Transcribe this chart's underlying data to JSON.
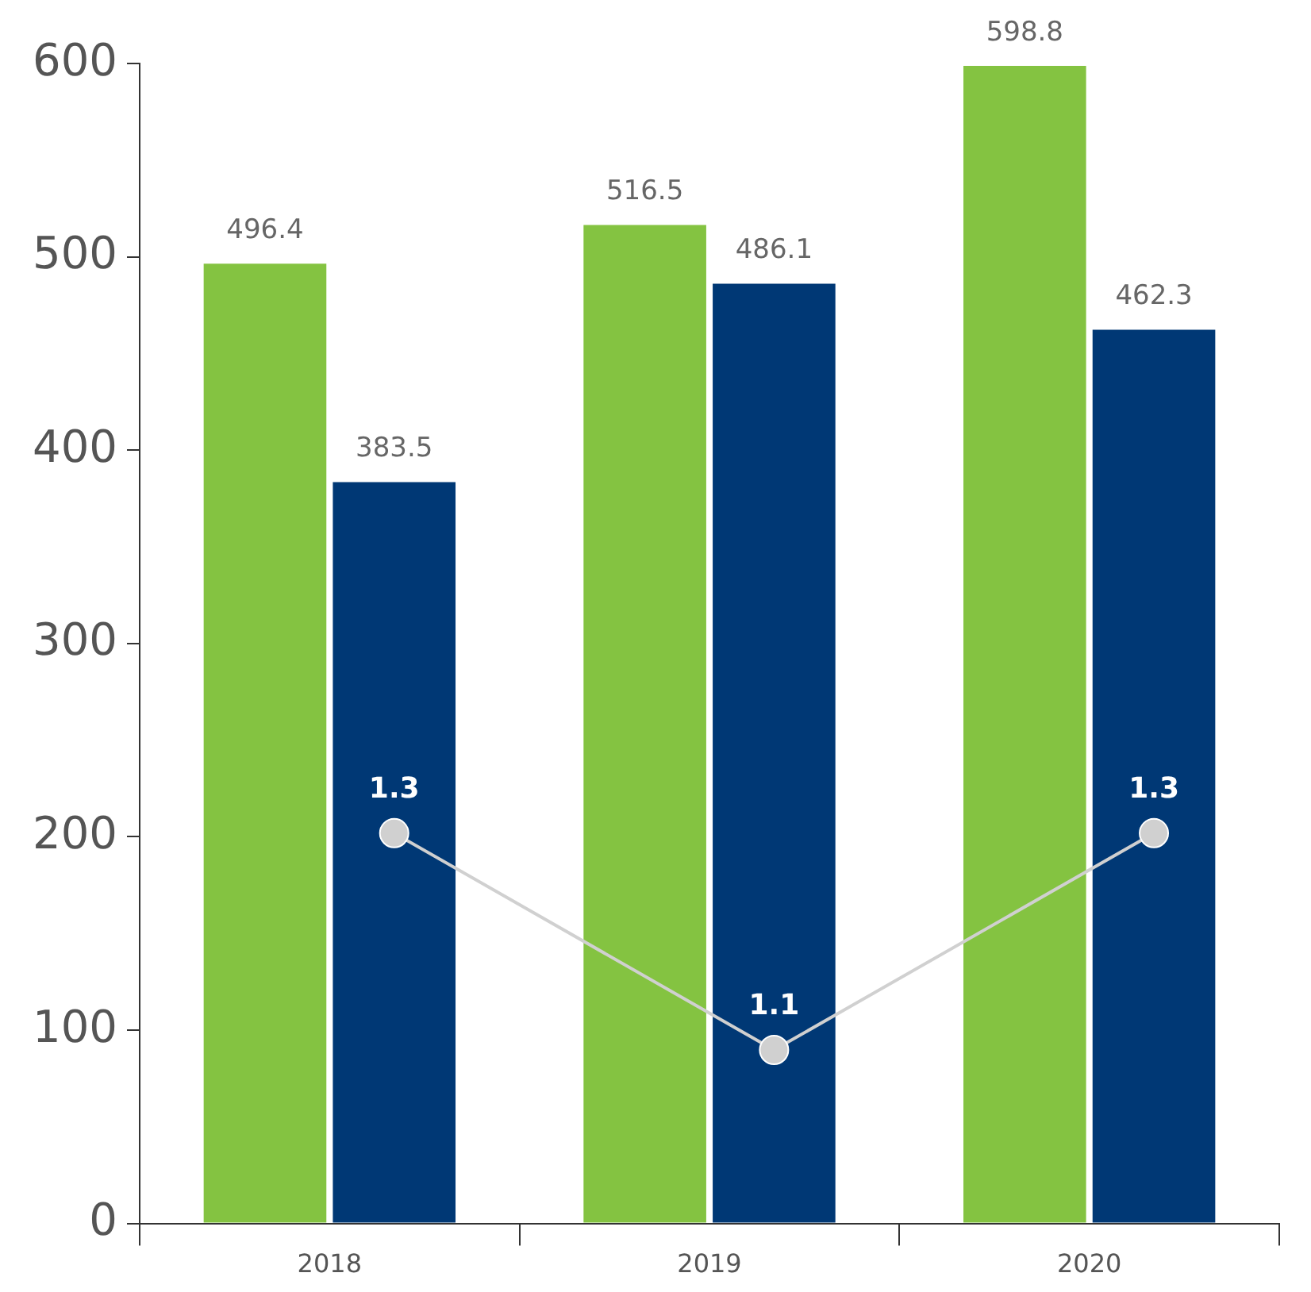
{
  "chart_data": {
    "type": "bar",
    "categories": [
      "2018",
      "2019",
      "2020"
    ],
    "series": [
      {
        "color": "#84c341",
        "values": [
          496.4,
          516.5,
          598.8
        ]
      },
      {
        "color": "#003875",
        "values": [
          383.5,
          486.1,
          462.3
        ]
      },
      {
        "type": "line",
        "axis": "y2",
        "color": "#d0d0d0",
        "values": [
          1.3,
          1.1,
          1.3
        ]
      }
    ],
    "ylim": [
      0,
      600
    ],
    "yticks": [
      0,
      100,
      200,
      300,
      400,
      500,
      600
    ],
    "y2lim": [
      0.94,
      2.01
    ],
    "data_labels": true,
    "grid": false,
    "legend": false,
    "marker": "circle",
    "line_style": "solid"
  }
}
